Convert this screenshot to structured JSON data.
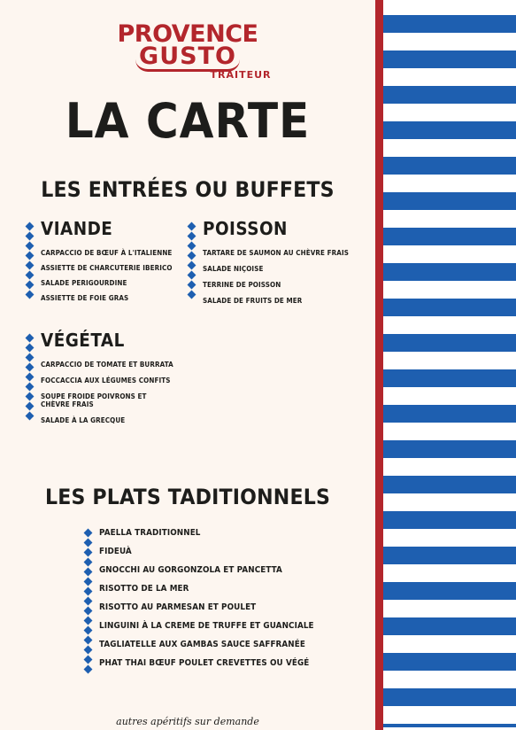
{
  "logo": {
    "line1": "PROVENCE",
    "line2": "GUSTO",
    "line3": "TRAITEUR"
  },
  "title": "LA CARTE",
  "entrees": {
    "title": "LES ENTRÉES OU BUFFETS",
    "viande": {
      "label": "VIANDE",
      "items": [
        "CARPACCIO DE BŒUF À L'ITALIENNE",
        "ASSIETTE DE CHARCUTERIE IBERICO",
        "SALADE PERIGOURDINE",
        "ASSIETTE DE FOIE GRAS"
      ]
    },
    "poisson": {
      "label": "POISSON",
      "items": [
        "TARTARE DE SAUMON AU CHÈVRE FRAIS",
        "SALADE NIÇOISE",
        "TERRINE DE POISSON",
        "SALADE DE FRUITS DE MER"
      ]
    },
    "vegetal": {
      "label": "VÉGÉTAL",
      "items": [
        "CARPACCIO DE TOMATE ET BURRATA",
        "FOCCACCIA AUX LÉGUMES CONFITS",
        "SOUPE FROIDE POIVRONS ET CHÈVRE FRAIS",
        "SALADE À LA GRECQUE"
      ]
    }
  },
  "plats": {
    "title": "LES PLATS TADITIONNELS",
    "items": [
      "PAELLA TRADITIONNEL",
      "FIDEUÀ",
      "GNOCCHI AU GORGONZOLA ET PANCETTA",
      "RISOTTO DE LA MER",
      "RISOTTO AU PARMESAN ET POULET",
      "LINGUINI À LA CREME DE TRUFFE ET GUANCIALE",
      "TAGLIATELLE AUX GAMBAS SAUCE SAFFRANÉE",
      "PHAT THAI BŒUF POULET CREVETTES OU VÉGÉ"
    ]
  },
  "footer": "autres apéritifs sur demande",
  "colors": {
    "brand_red": "#b3262c",
    "stripe_blue": "#1e5fb0",
    "background": "#fdf6f0"
  }
}
